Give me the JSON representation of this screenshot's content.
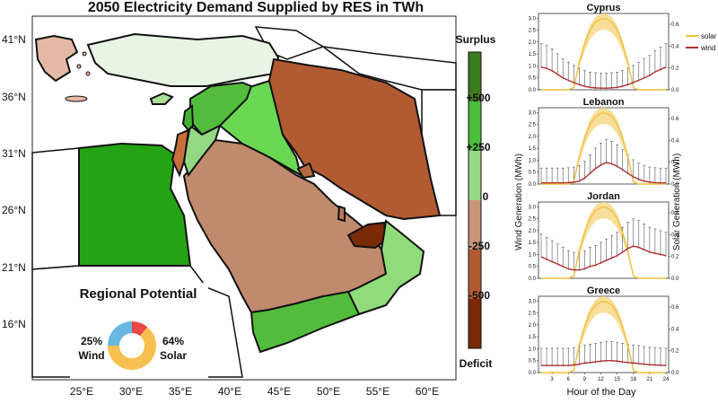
{
  "map": {
    "title": "2050 Electricity Demand Supplied by RES in TWh",
    "lat_labels": [
      "41°N",
      "36°N",
      "31°N",
      "26°N",
      "21°N",
      "16°N"
    ],
    "lon_labels": [
      "25°E",
      "30°E",
      "35°E",
      "40°E",
      "45°E",
      "50°E",
      "55°E",
      "60°E"
    ],
    "colorbar": {
      "top_label": "Surplus",
      "bottom_label": "Deficit",
      "tick_labels": [
        "+500",
        "+250",
        "0",
        "-250",
        "-500"
      ],
      "colors": [
        "#3c7a1e",
        "#4cbc3c",
        "#96d884",
        "#c8957a",
        "#b25a32",
        "#7a2a06"
      ]
    },
    "regions_colors": {
      "turkey": "#e8f4e4",
      "greece": "#e4b8a4",
      "iran": "#b25a32",
      "egypt": "#24a414",
      "saudi": "#c08a6c",
      "iraq": "#6ad852",
      "syria": "#54bc3c",
      "jordan": "#94d884",
      "israel": "#c8703c",
      "lebanon": "#44b034",
      "cyprus": "#a8e098",
      "oman": "#90dc7c",
      "yemen": "#54bc3c",
      "uae": "#7a2a06",
      "kuwait": "#b86844",
      "qatar": "#b87a5c"
    },
    "inset": {
      "title": "Regional Potential",
      "wind_pct": "25%",
      "wind_label": "Wind",
      "solar_pct": "64%",
      "solar_label": "Solar",
      "donut_colors": [
        "#f8c050",
        "#68b8e0",
        "#e84848"
      ]
    }
  },
  "panels": {
    "y_left_label": "Wind Generation (MWh)",
    "y_right_label": "Solar Generation (MWh)",
    "x_label": "Hour of the Day",
    "x_ticks": [
      "3",
      "6",
      "9",
      "12",
      "15",
      "18",
      "21",
      "24"
    ],
    "left_ticks": [
      "0.0",
      "0.5",
      "1.0",
      "1.5",
      "2.0",
      "2.5",
      "3.0"
    ],
    "right_ticks": [
      "0.0",
      "0.2",
      "0.4",
      "0.6"
    ],
    "legend": {
      "solar": "solar",
      "wind": "wind"
    },
    "colors": {
      "solar": "#f0c040",
      "solar_band": "#f6d88a",
      "wind": "#b03030"
    }
  },
  "chart_data": [
    {
      "type": "line",
      "title": "Cyprus",
      "x": [
        1,
        2,
        3,
        4,
        5,
        6,
        7,
        8,
        9,
        10,
        11,
        12,
        13,
        14,
        15,
        16,
        17,
        18,
        19,
        20,
        21,
        22,
        23,
        24
      ],
      "series": [
        {
          "name": "solar",
          "axis": "right",
          "values": [
            0,
            0,
            0,
            0,
            0,
            0,
            0.02,
            0.25,
            0.42,
            0.55,
            0.62,
            0.65,
            0.65,
            0.62,
            0.55,
            0.42,
            0.25,
            0.02,
            0,
            0,
            0,
            0,
            0,
            0
          ]
        },
        {
          "name": "wind",
          "axis": "left",
          "values": [
            0.95,
            0.9,
            0.8,
            0.65,
            0.5,
            0.4,
            0.3,
            0.22,
            0.15,
            0.1,
            0.08,
            0.07,
            0.07,
            0.08,
            0.1,
            0.15,
            0.22,
            0.3,
            0.4,
            0.5,
            0.6,
            0.75,
            0.85,
            0.95
          ]
        }
      ],
      "ylim_left": [
        0,
        3.2
      ],
      "ylim_right": [
        0,
        0.7
      ]
    },
    {
      "type": "line",
      "title": "Lebanon",
      "x": [
        1,
        2,
        3,
        4,
        5,
        6,
        7,
        8,
        9,
        10,
        11,
        12,
        13,
        14,
        15,
        16,
        17,
        18,
        19,
        20,
        21,
        22,
        23,
        24
      ],
      "series": [
        {
          "name": "solar",
          "axis": "right",
          "values": [
            0,
            0,
            0,
            0,
            0,
            0,
            0.02,
            0.25,
            0.42,
            0.55,
            0.62,
            0.65,
            0.65,
            0.62,
            0.55,
            0.42,
            0.25,
            0.02,
            0,
            0,
            0,
            0,
            0,
            0
          ]
        },
        {
          "name": "wind",
          "axis": "left",
          "values": [
            0.05,
            0.05,
            0.05,
            0.05,
            0.05,
            0.06,
            0.08,
            0.12,
            0.25,
            0.45,
            0.65,
            0.8,
            0.9,
            0.85,
            0.75,
            0.6,
            0.45,
            0.3,
            0.2,
            0.12,
            0.08,
            0.06,
            0.05,
            0.05
          ]
        }
      ],
      "ylim_left": [
        0,
        3.2
      ],
      "ylim_right": [
        0,
        0.7
      ]
    },
    {
      "type": "line",
      "title": "Jordan",
      "x": [
        1,
        2,
        3,
        4,
        5,
        6,
        7,
        8,
        9,
        10,
        11,
        12,
        13,
        14,
        15,
        16,
        17,
        18,
        19,
        20,
        21,
        22,
        23,
        24
      ],
      "series": [
        {
          "name": "solar",
          "axis": "right",
          "values": [
            0,
            0,
            0,
            0,
            0,
            0,
            0.02,
            0.25,
            0.42,
            0.55,
            0.62,
            0.65,
            0.65,
            0.62,
            0.55,
            0.42,
            0.25,
            0.02,
            0,
            0,
            0,
            0,
            0,
            0
          ]
        },
        {
          "name": "wind",
          "axis": "left",
          "values": [
            0.9,
            0.8,
            0.7,
            0.6,
            0.5,
            0.4,
            0.35,
            0.35,
            0.4,
            0.5,
            0.55,
            0.65,
            0.75,
            0.85,
            0.95,
            1.1,
            1.25,
            1.35,
            1.3,
            1.2,
            1.1,
            1.05,
            1.0,
            0.95
          ]
        }
      ],
      "ylim_left": [
        0,
        3.2
      ],
      "ylim_right": [
        0,
        0.7
      ]
    },
    {
      "type": "line",
      "title": "Greece",
      "x": [
        1,
        2,
        3,
        4,
        5,
        6,
        7,
        8,
        9,
        10,
        11,
        12,
        13,
        14,
        15,
        16,
        17,
        18,
        19,
        20,
        21,
        22,
        23,
        24
      ],
      "series": [
        {
          "name": "solar",
          "axis": "right",
          "values": [
            0,
            0,
            0,
            0,
            0,
            0,
            0.02,
            0.25,
            0.42,
            0.55,
            0.62,
            0.65,
            0.65,
            0.62,
            0.55,
            0.42,
            0.25,
            0.02,
            0,
            0,
            0,
            0,
            0,
            0
          ]
        },
        {
          "name": "wind",
          "axis": "left",
          "values": [
            0.3,
            0.3,
            0.3,
            0.3,
            0.3,
            0.3,
            0.32,
            0.35,
            0.4,
            0.42,
            0.45,
            0.48,
            0.5,
            0.5,
            0.48,
            0.45,
            0.42,
            0.4,
            0.38,
            0.35,
            0.33,
            0.32,
            0.31,
            0.3
          ]
        }
      ],
      "ylim_left": [
        0,
        3.2
      ],
      "ylim_right": [
        0,
        0.7
      ]
    }
  ]
}
